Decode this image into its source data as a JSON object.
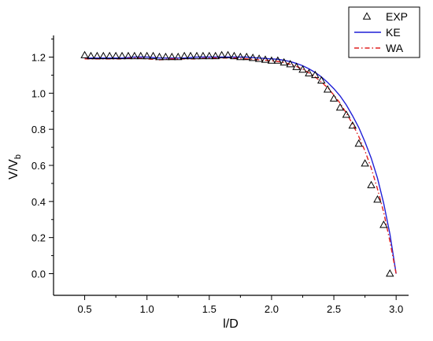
{
  "chart_data": {
    "type": "line",
    "xlabel": "l/D",
    "ylabel_main": "V/V",
    "ylabel_sub": "b",
    "xlim": [
      0.25,
      3.1
    ],
    "ylim": [
      -0.12,
      1.32
    ],
    "xticks": [
      0.5,
      1.0,
      1.5,
      2.0,
      2.5,
      3.0
    ],
    "xtick_labels": [
      "0.5",
      "1.0",
      "1.5",
      "2.0",
      "2.5",
      "3.0"
    ],
    "yticks": [
      0.0,
      0.2,
      0.4,
      0.6,
      0.8,
      1.0,
      1.2
    ],
    "ytick_labels": [
      "0.0",
      "0.2",
      "0.4",
      "0.6",
      "0.8",
      "1.0",
      "1.2"
    ],
    "legend_position": "top-right",
    "series": [
      {
        "name": "EXP",
        "kind": "scatter",
        "marker": "triangle-open",
        "color": "#000000",
        "x": [
          0.5,
          0.55,
          0.6,
          0.65,
          0.7,
          0.75,
          0.8,
          0.85,
          0.9,
          0.95,
          1.0,
          1.05,
          1.1,
          1.15,
          1.2,
          1.25,
          1.3,
          1.35,
          1.4,
          1.45,
          1.5,
          1.55,
          1.6,
          1.65,
          1.7,
          1.75,
          1.8,
          1.85,
          1.9,
          1.95,
          2.0,
          2.05,
          2.1,
          2.15,
          2.2,
          2.25,
          2.3,
          2.35,
          2.4,
          2.45,
          2.5,
          2.55,
          2.6,
          2.65,
          2.7,
          2.75,
          2.8,
          2.85,
          2.9,
          2.95
        ],
        "y": [
          1.21,
          1.205,
          1.205,
          1.205,
          1.205,
          1.205,
          1.205,
          1.205,
          1.205,
          1.205,
          1.205,
          1.205,
          1.2,
          1.2,
          1.2,
          1.2,
          1.205,
          1.205,
          1.205,
          1.205,
          1.205,
          1.205,
          1.21,
          1.21,
          1.205,
          1.2,
          1.2,
          1.195,
          1.19,
          1.185,
          1.18,
          1.18,
          1.17,
          1.16,
          1.145,
          1.13,
          1.11,
          1.1,
          1.07,
          1.02,
          0.97,
          0.92,
          0.88,
          0.82,
          0.72,
          0.61,
          0.49,
          0.41,
          0.27,
          0.0
        ]
      },
      {
        "name": "KE",
        "kind": "line",
        "dash": "solid",
        "color": "#1f1fd6",
        "x": [
          0.5,
          0.6,
          0.7,
          0.8,
          0.9,
          1.0,
          1.1,
          1.2,
          1.3,
          1.4,
          1.5,
          1.6,
          1.7,
          1.8,
          1.9,
          2.0,
          2.05,
          2.1,
          2.15,
          2.2,
          2.25,
          2.3,
          2.35,
          2.4,
          2.45,
          2.5,
          2.55,
          2.6,
          2.65,
          2.7,
          2.75,
          2.8,
          2.85,
          2.9,
          2.95,
          3.0
        ],
        "y": [
          1.195,
          1.195,
          1.195,
          1.195,
          1.2,
          1.2,
          1.195,
          1.195,
          1.195,
          1.2,
          1.2,
          1.2,
          1.2,
          1.2,
          1.195,
          1.19,
          1.188,
          1.182,
          1.175,
          1.165,
          1.152,
          1.135,
          1.115,
          1.09,
          1.06,
          1.025,
          0.985,
          0.935,
          0.875,
          0.81,
          0.73,
          0.64,
          0.53,
          0.39,
          0.22,
          0.0
        ]
      },
      {
        "name": "WA",
        "kind": "line",
        "dash": "dashdot",
        "color": "#e02020",
        "x": [
          0.5,
          0.6,
          0.7,
          0.8,
          0.9,
          1.0,
          1.1,
          1.2,
          1.3,
          1.4,
          1.5,
          1.6,
          1.7,
          1.8,
          1.9,
          2.0,
          2.05,
          2.1,
          2.15,
          2.2,
          2.25,
          2.3,
          2.35,
          2.4,
          2.45,
          2.5,
          2.55,
          2.6,
          2.65,
          2.7,
          2.75,
          2.8,
          2.85,
          2.9,
          2.95,
          3.0
        ],
        "y": [
          1.19,
          1.19,
          1.19,
          1.19,
          1.195,
          1.19,
          1.185,
          1.19,
          1.19,
          1.19,
          1.195,
          1.195,
          1.195,
          1.19,
          1.185,
          1.18,
          1.176,
          1.17,
          1.16,
          1.148,
          1.133,
          1.113,
          1.09,
          1.062,
          1.03,
          0.99,
          0.945,
          0.89,
          0.83,
          0.76,
          0.68,
          0.585,
          0.47,
          0.34,
          0.18,
          0.0
        ]
      }
    ]
  }
}
